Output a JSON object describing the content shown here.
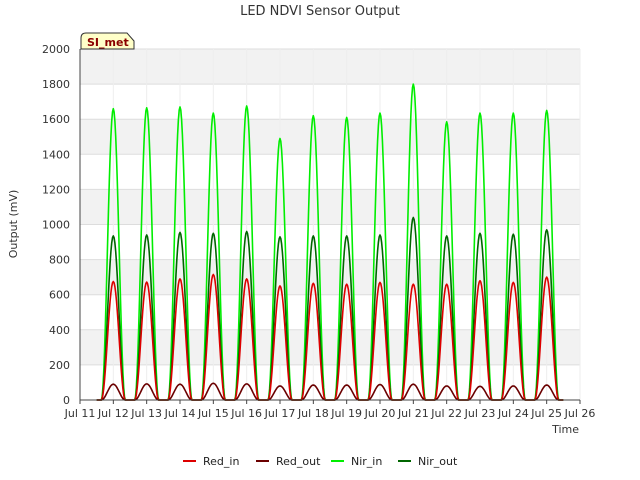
{
  "chart_data": {
    "type": "line",
    "title": "LED NDVI Sensor Output",
    "xlabel": "Time",
    "ylabel": "Output (mV)",
    "site_label": "SI_met",
    "x_ticks": [
      "Jul 11",
      "Jul 12",
      "Jul 13",
      "Jul 14",
      "Jul 15",
      "Jul 16",
      "Jul 17",
      "Jul 18",
      "Jul 19",
      "Jul 20",
      "Jul 21",
      "Jul 22",
      "Jul 23",
      "Jul 24",
      "Jul 25",
      "Jul 26"
    ],
    "xlim_days": [
      11,
      26
    ],
    "y_ticks": [
      0,
      200,
      400,
      600,
      800,
      1000,
      1200,
      1400,
      1600,
      1800,
      2000
    ],
    "ylim": [
      0,
      2000
    ],
    "daily_peaks": {
      "days": [
        12,
        13,
        14,
        15,
        16,
        17,
        18,
        19,
        20,
        21,
        22,
        23,
        24,
        25
      ],
      "series": [
        {
          "name": "Red_in",
          "color": "#dd0000",
          "peaks": [
            675,
            672,
            690,
            715,
            690,
            650,
            665,
            660,
            670,
            660,
            660,
            680,
            670,
            700
          ]
        },
        {
          "name": "Red_out",
          "color": "#6b0000",
          "peaks": [
            90,
            92,
            90,
            95,
            92,
            80,
            85,
            85,
            88,
            90,
            80,
            78,
            80,
            85
          ]
        },
        {
          "name": "Nir_in",
          "color": "#00ee00",
          "peaks": [
            1660,
            1665,
            1670,
            1635,
            1675,
            1490,
            1620,
            1610,
            1635,
            1800,
            1585,
            1635,
            1635,
            1650
          ]
        },
        {
          "name": "Nir_out",
          "color": "#006600",
          "peaks": [
            935,
            940,
            955,
            950,
            960,
            930,
            935,
            935,
            940,
            1040,
            935,
            950,
            945,
            970
          ]
        }
      ]
    },
    "legend": [
      "Red_in",
      "Red_out",
      "Nir_in",
      "Nir_out"
    ]
  }
}
